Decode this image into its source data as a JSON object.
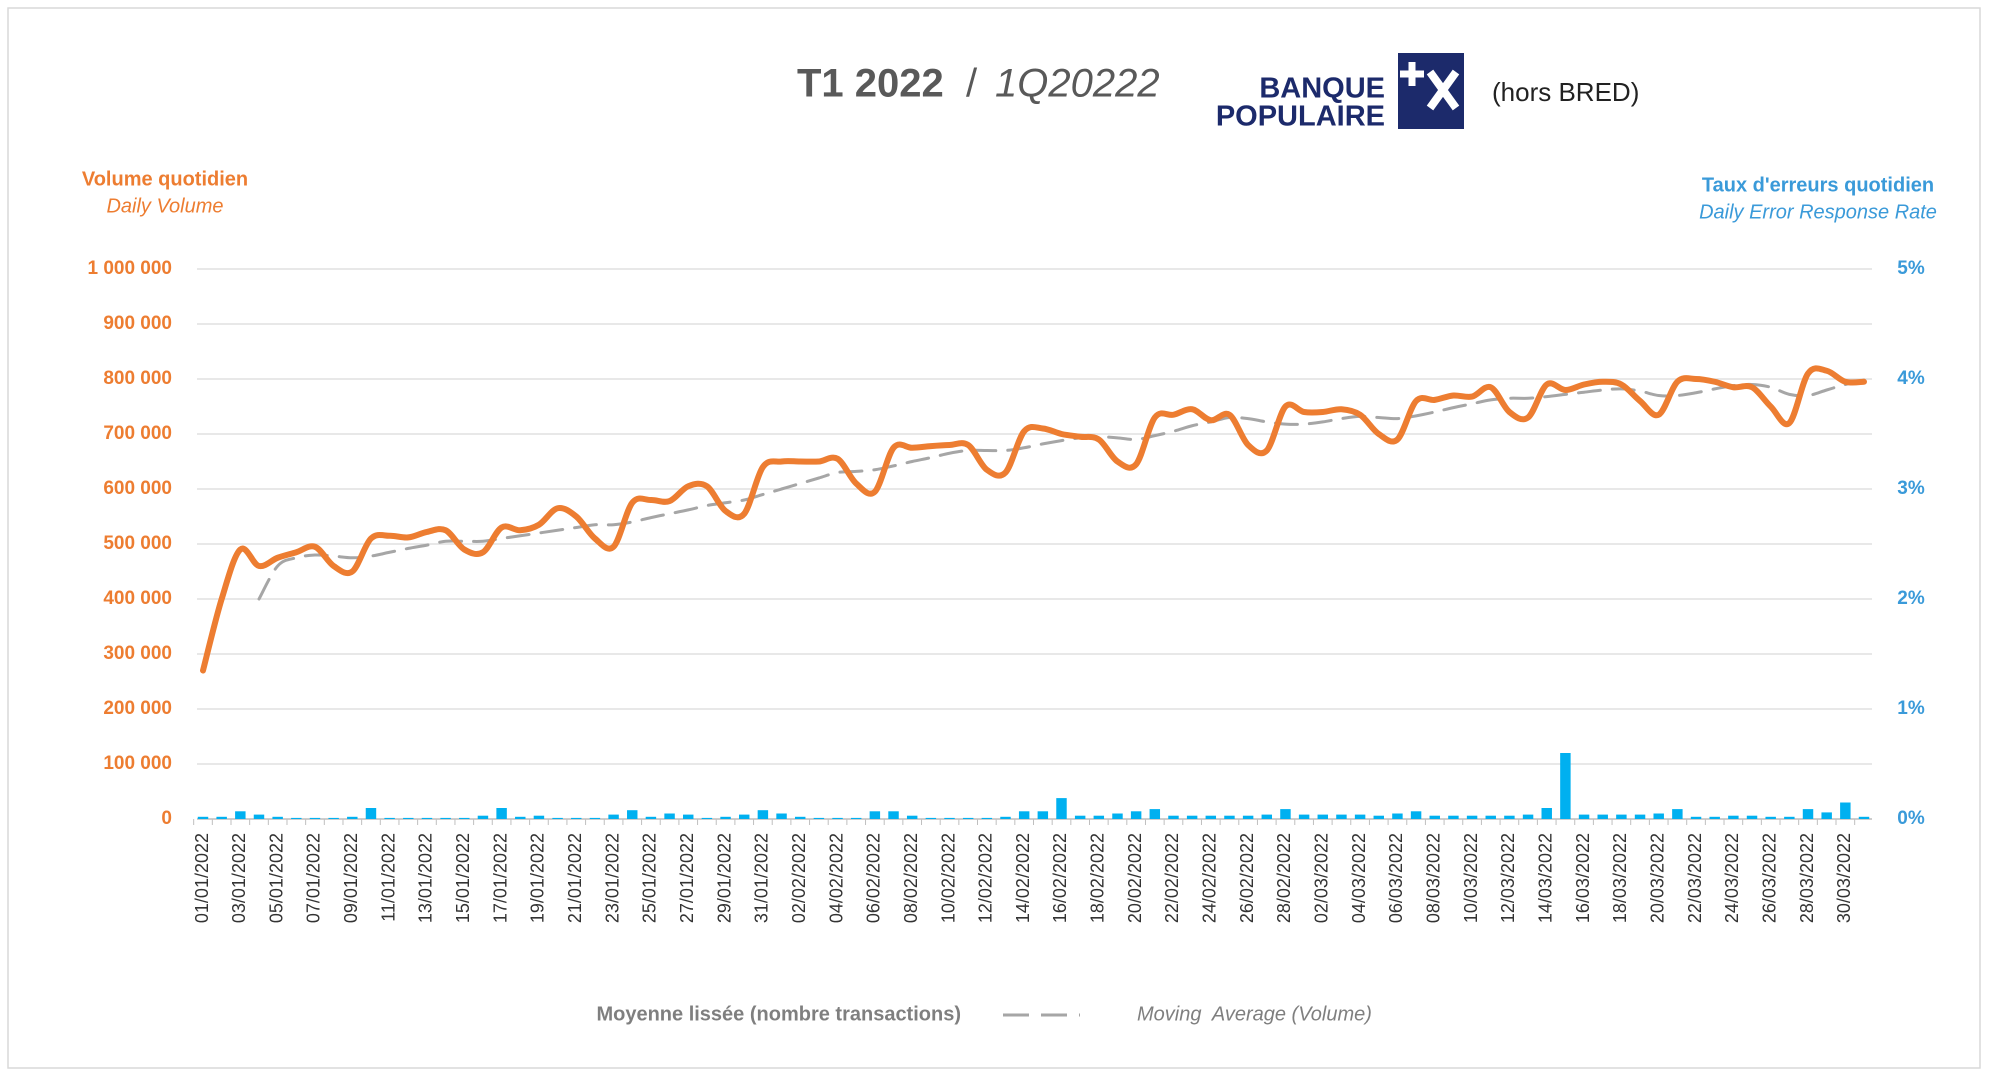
{
  "chart_data": {
    "type": "line",
    "title": "T1 2022",
    "title_separator": "/",
    "title_alt": "1Q20222",
    "logo_lines": [
      "BANQUE",
      "POPULAIRE"
    ],
    "note": "(hors BRED)",
    "y_label": "Volume quotidien",
    "y_label_alt": "Daily Volume",
    "y2_label": "Taux d'erreurs quotidien",
    "y2_label_alt": "Daily Error Response Rate",
    "categories": [
      "01/01/2022",
      null,
      "03/01/2022",
      null,
      "05/01/2022",
      null,
      "07/01/2022",
      null,
      "09/01/2022",
      null,
      "11/01/2022",
      null,
      "13/01/2022",
      null,
      "15/01/2022",
      null,
      "17/01/2022",
      null,
      "19/01/2022",
      null,
      "21/01/2022",
      null,
      "23/01/2022",
      null,
      "25/01/2022",
      null,
      "27/01/2022",
      null,
      "29/01/2022",
      null,
      "31/01/2022",
      null,
      "02/02/2022",
      null,
      "04/02/2022",
      null,
      "06/02/2022",
      null,
      "08/02/2022",
      null,
      "10/02/2022",
      null,
      "12/02/2022",
      null,
      "14/02/2022",
      null,
      "16/02/2022",
      null,
      "18/02/2022",
      null,
      "20/02/2022",
      null,
      "22/02/2022",
      null,
      "24/02/2022",
      null,
      "26/02/2022",
      null,
      "28/02/2022",
      null,
      "02/03/2022",
      null,
      "04/03/2022",
      null,
      "06/03/2022",
      null,
      "08/03/2022",
      null,
      "10/03/2022",
      null,
      "12/03/2022",
      null,
      "14/03/2022",
      null,
      "16/03/2022",
      null,
      "18/03/2022",
      null,
      "20/03/2022",
      null,
      "22/03/2022",
      null,
      "24/03/2022",
      null,
      "26/03/2022",
      null,
      "28/03/2022",
      null,
      "30/03/2022",
      null
    ],
    "series": [
      {
        "color": "#ed7d31",
        "axis": "y",
        "type": "line",
        "values": [
          270000,
          400000,
          490000,
          460000,
          475000,
          485000,
          495000,
          460000,
          450000,
          510000,
          515000,
          512000,
          522000,
          525000,
          490000,
          485000,
          530000,
          525000,
          535000,
          565000,
          550000,
          510000,
          495000,
          575000,
          580000,
          578000,
          605000,
          605000,
          560000,
          555000,
          640000,
          650000,
          650000,
          650000,
          655000,
          610000,
          595000,
          675000,
          675000,
          678000,
          680000,
          680000,
          635000,
          630000,
          705000,
          710000,
          700000,
          695000,
          690000,
          650000,
          645000,
          730000,
          735000,
          745000,
          725000,
          735000,
          680000,
          670000,
          750000,
          740000,
          740000,
          745000,
          735000,
          700000,
          690000,
          760000,
          762000,
          770000,
          768000,
          785000,
          740000,
          730000,
          790000,
          780000,
          790000,
          795000,
          790000,
          760000,
          735000,
          795000,
          800000,
          795000,
          785000,
          785000,
          750000,
          720000,
          810000,
          815000,
          795000,
          795000
        ]
      },
      {
        "name": "Moyenne lissée (nombre transactions)",
        "name_alt": "Moving  Average (Volume)",
        "color": "#a6a6a6",
        "axis": "y",
        "type": "line",
        "dashed": true,
        "values": [
          null,
          null,
          null,
          400000,
          460000,
          475000,
          480000,
          478000,
          475000,
          478000,
          485000,
          492000,
          498000,
          505000,
          505000,
          505000,
          510000,
          515000,
          520000,
          525000,
          530000,
          535000,
          535000,
          540000,
          548000,
          555000,
          562000,
          570000,
          575000,
          580000,
          590000,
          600000,
          610000,
          620000,
          630000,
          632000,
          635000,
          642000,
          650000,
          657000,
          665000,
          670000,
          670000,
          670000,
          675000,
          682000,
          688000,
          693000,
          695000,
          693000,
          690000,
          697000,
          705000,
          715000,
          722000,
          730000,
          728000,
          722000,
          718000,
          718000,
          722000,
          728000,
          732000,
          730000,
          728000,
          733000,
          740000,
          748000,
          755000,
          762000,
          765000,
          765000,
          768000,
          772000,
          776000,
          780000,
          782000,
          778000,
          770000,
          770000,
          775000,
          782000,
          788000,
          790000,
          785000,
          772000,
          770000,
          780000,
          790000,
          798000
        ]
      },
      {
        "color": "#00b0f0",
        "axis": "y2",
        "type": "bar",
        "values": [
          0.02,
          0.02,
          0.07,
          0.04,
          0.02,
          0.01,
          0.01,
          0.01,
          0.02,
          0.1,
          0.01,
          0.01,
          0.01,
          0.01,
          0.01,
          0.03,
          0.1,
          0.02,
          0.03,
          0.01,
          0.01,
          0.01,
          0.04,
          0.08,
          0.02,
          0.05,
          0.04,
          0.01,
          0.02,
          0.04,
          0.08,
          0.05,
          0.02,
          0.01,
          0.01,
          0.01,
          0.07,
          0.07,
          0.03,
          0.01,
          0.01,
          0.01,
          0.01,
          0.02,
          0.07,
          0.07,
          0.19,
          0.03,
          0.03,
          0.05,
          0.07,
          0.09,
          0.03,
          0.03,
          0.03,
          0.03,
          0.03,
          0.04,
          0.09,
          0.04,
          0.04,
          0.04,
          0.04,
          0.03,
          0.05,
          0.07,
          0.03,
          0.03,
          0.03,
          0.03,
          0.03,
          0.04,
          0.1,
          0.6,
          0.04,
          0.04,
          0.04,
          0.04,
          0.05,
          0.09,
          0.02,
          0.02,
          0.03,
          0.03,
          0.02,
          0.02,
          0.09,
          0.06,
          0.15,
          0.02
        ]
      }
    ],
    "ylim": [
      0,
      1000000
    ],
    "yticks": [
      0,
      {
        "value": 100000,
        "label": "100 000"
      },
      {
        "value": 200000,
        "label": "200 000"
      },
      {
        "value": 300000,
        "label": "300 000"
      },
      {
        "value": 400000,
        "label": "400 000"
      },
      {
        "value": 500000,
        "label": "500 000"
      },
      {
        "value": 600000,
        "label": "600 000"
      },
      {
        "value": 700000,
        "label": "700 000"
      },
      {
        "value": 800000,
        "label": "800 000"
      },
      {
        "value": 900000,
        "label": "900 000"
      },
      {
        "value": 1000000,
        "label": "1 000 000"
      }
    ],
    "y2lim": [
      0,
      5
    ],
    "y2ticks": [
      {
        "value": 0,
        "label": "0%"
      },
      {
        "value": 1,
        "label": "1%"
      },
      {
        "value": 2,
        "label": "2%"
      },
      {
        "value": 3,
        "label": "3%"
      },
      {
        "value": 4,
        "label": "4%"
      },
      {
        "value": 5,
        "label": "5%"
      }
    ],
    "grid": true
  }
}
